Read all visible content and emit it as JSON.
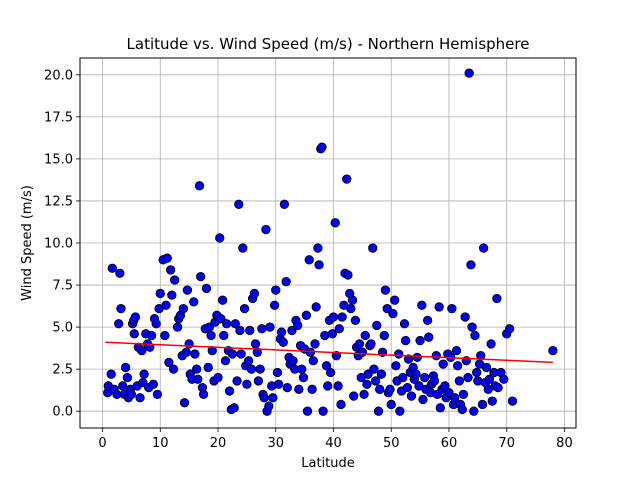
{
  "chart_data": {
    "type": "scatter",
    "title": "Latitude vs. Wind Speed (m/s) - Northern Hemisphere",
    "xlabel": "Latitude",
    "ylabel": "Wind Speed (m/s)",
    "xlim": [
      -3.9,
      82
    ],
    "ylim": [
      -1.0,
      21.0
    ],
    "xticks": [
      0,
      10,
      20,
      30,
      40,
      50,
      60,
      70,
      80
    ],
    "yticks": [
      0.0,
      2.5,
      5.0,
      7.5,
      10.0,
      12.5,
      15.0,
      17.5,
      20.0
    ],
    "xtick_labels": [
      "0",
      "10",
      "20",
      "30",
      "40",
      "50",
      "60",
      "70",
      "80"
    ],
    "ytick_labels": [
      "0.0",
      "2.5",
      "5.0",
      "7.5",
      "10.0",
      "12.5",
      "15.0",
      "17.5",
      "20.0"
    ],
    "grid": true,
    "marker_color": "#0000ff",
    "marker_edge": "#000000",
    "regression": {
      "color": "#ff0000",
      "x": [
        0.5,
        78
      ],
      "y": [
        4.1,
        2.9
      ]
    },
    "points": [
      [
        0.9,
        1.1
      ],
      [
        1.0,
        1.5
      ],
      [
        1.5,
        2.2
      ],
      [
        1.7,
        8.5
      ],
      [
        2.0,
        1.3
      ],
      [
        2.5,
        1.0
      ],
      [
        2.8,
        5.2
      ],
      [
        3.0,
        8.2
      ],
      [
        3.2,
        6.1
      ],
      [
        3.5,
        1.5
      ],
      [
        3.8,
        1.0
      ],
      [
        4.0,
        2.6
      ],
      [
        4.3,
        2.0
      ],
      [
        4.5,
        0.8
      ],
      [
        4.8,
        1.3
      ],
      [
        5.0,
        1.0
      ],
      [
        5.2,
        5.2
      ],
      [
        5.4,
        5.4
      ],
      [
        5.5,
        4.6
      ],
      [
        5.7,
        5.6
      ],
      [
        6.0,
        1.5
      ],
      [
        6.2,
        3.8
      ],
      [
        6.5,
        0.8
      ],
      [
        6.8,
        3.6
      ],
      [
        7.0,
        1.7
      ],
      [
        7.2,
        2.2
      ],
      [
        7.5,
        4.6
      ],
      [
        7.8,
        4.0
      ],
      [
        8.0,
        1.4
      ],
      [
        8.2,
        3.8
      ],
      [
        8.5,
        4.5
      ],
      [
        8.8,
        1.6
      ],
      [
        9.0,
        5.5
      ],
      [
        9.3,
        5.2
      ],
      [
        9.5,
        1.0
      ],
      [
        9.8,
        6.1
      ],
      [
        10.0,
        7.0
      ],
      [
        10.5,
        9.0
      ],
      [
        10.8,
        4.5
      ],
      [
        11.0,
        6.3
      ],
      [
        11.2,
        9.1
      ],
      [
        11.5,
        2.9
      ],
      [
        11.8,
        8.4
      ],
      [
        12.0,
        6.9
      ],
      [
        12.3,
        2.5
      ],
      [
        12.5,
        7.8
      ],
      [
        13.0,
        5.0
      ],
      [
        13.2,
        5.5
      ],
      [
        13.5,
        5.7
      ],
      [
        13.8,
        3.3
      ],
      [
        14.0,
        6.1
      ],
      [
        14.2,
        0.5
      ],
      [
        14.5,
        3.5
      ],
      [
        14.7,
        7.2
      ],
      [
        15.0,
        4.0
      ],
      [
        15.2,
        2.2
      ],
      [
        15.5,
        1.9
      ],
      [
        15.8,
        6.5
      ],
      [
        16.0,
        3.4
      ],
      [
        16.3,
        2.5
      ],
      [
        16.5,
        1.9
      ],
      [
        16.8,
        13.4
      ],
      [
        17.0,
        8.0
      ],
      [
        17.3,
        1.4
      ],
      [
        17.5,
        1.0
      ],
      [
        17.8,
        4.9
      ],
      [
        18.0,
        7.3
      ],
      [
        18.3,
        2.6
      ],
      [
        18.5,
        5.0
      ],
      [
        18.8,
        4.5
      ],
      [
        19.0,
        3.6
      ],
      [
        19.3,
        1.8
      ],
      [
        19.5,
        5.3
      ],
      [
        19.8,
        5.7
      ],
      [
        20.0,
        2.0
      ],
      [
        20.3,
        10.3
      ],
      [
        20.5,
        5.5
      ],
      [
        20.8,
        6.6
      ],
      [
        21.0,
        4.5
      ],
      [
        21.3,
        3.0
      ],
      [
        21.5,
        5.2
      ],
      [
        21.8,
        3.6
      ],
      [
        22.0,
        1.2
      ],
      [
        22.3,
        0.1
      ],
      [
        22.5,
        3.4
      ],
      [
        22.8,
        0.2
      ],
      [
        23.0,
        5.2
      ],
      [
        23.3,
        1.8
      ],
      [
        23.6,
        12.3
      ],
      [
        23.8,
        4.8
      ],
      [
        24.0,
        3.4
      ],
      [
        24.3,
        9.7
      ],
      [
        24.6,
        6.1
      ],
      [
        24.8,
        2.7
      ],
      [
        25.0,
        1.6
      ],
      [
        25.3,
        3.0
      ],
      [
        25.5,
        4.8
      ],
      [
        25.8,
        2.5
      ],
      [
        26.0,
        6.7
      ],
      [
        26.3,
        7.0
      ],
      [
        26.5,
        4.0
      ],
      [
        26.8,
        3.5
      ],
      [
        27.0,
        1.8
      ],
      [
        27.3,
        2.5
      ],
      [
        27.6,
        4.9
      ],
      [
        27.8,
        1.0
      ],
      [
        28.0,
        0.8
      ],
      [
        28.3,
        10.8
      ],
      [
        28.5,
        0.0
      ],
      [
        28.8,
        0.3
      ],
      [
        29.0,
        5.0
      ],
      [
        29.3,
        1.5
      ],
      [
        29.5,
        0.8
      ],
      [
        29.8,
        6.3
      ],
      [
        30.0,
        7.2
      ],
      [
        30.3,
        2.3
      ],
      [
        30.5,
        1.6
      ],
      [
        30.8,
        4.3
      ],
      [
        31.0,
        4.7
      ],
      [
        31.3,
        4.1
      ],
      [
        31.5,
        12.3
      ],
      [
        31.8,
        7.7
      ],
      [
        32.0,
        1.4
      ],
      [
        32.3,
        3.2
      ],
      [
        32.5,
        2.8
      ],
      [
        32.8,
        4.8
      ],
      [
        33.0,
        3.0
      ],
      [
        33.3,
        2.5
      ],
      [
        33.5,
        5.4
      ],
      [
        33.8,
        5.1
      ],
      [
        34.0,
        1.3
      ],
      [
        34.3,
        3.9
      ],
      [
        34.5,
        2.5
      ],
      [
        34.8,
        2.0
      ],
      [
        35.0,
        3.7
      ],
      [
        35.3,
        5.7
      ],
      [
        35.5,
        0.0
      ],
      [
        35.8,
        9.0
      ],
      [
        36.0,
        3.5
      ],
      [
        36.3,
        1.3
      ],
      [
        36.5,
        3.0
      ],
      [
        36.8,
        4.0
      ],
      [
        37.0,
        6.2
      ],
      [
        37.3,
        9.7
      ],
      [
        37.5,
        8.7
      ],
      [
        37.8,
        15.6
      ],
      [
        38.0,
        15.7
      ],
      [
        38.2,
        0.0
      ],
      [
        38.5,
        4.5
      ],
      [
        38.8,
        2.7
      ],
      [
        39.0,
        1.5
      ],
      [
        39.3,
        5.4
      ],
      [
        39.5,
        2.3
      ],
      [
        39.8,
        4.6
      ],
      [
        40.0,
        5.6
      ],
      [
        40.3,
        11.2
      ],
      [
        40.5,
        3.3
      ],
      [
        40.8,
        1.5
      ],
      [
        41.0,
        4.9
      ],
      [
        41.3,
        0.4
      ],
      [
        41.5,
        5.6
      ],
      [
        41.8,
        6.3
      ],
      [
        42.0,
        8.2
      ],
      [
        42.3,
        13.8
      ],
      [
        42.5,
        8.1
      ],
      [
        42.8,
        7.0
      ],
      [
        43.0,
        6.1
      ],
      [
        43.3,
        6.6
      ],
      [
        43.5,
        0.9
      ],
      [
        43.8,
        5.4
      ],
      [
        44.0,
        3.8
      ],
      [
        44.3,
        3.3
      ],
      [
        44.5,
        4.0
      ],
      [
        44.8,
        2.0
      ],
      [
        45.0,
        3.5
      ],
      [
        45.3,
        1.0
      ],
      [
        45.5,
        4.5
      ],
      [
        45.8,
        1.6
      ],
      [
        46.0,
        2.2
      ],
      [
        46.3,
        3.9
      ],
      [
        46.5,
        4.0
      ],
      [
        46.8,
        9.7
      ],
      [
        47.0,
        2.5
      ],
      [
        47.3,
        1.8
      ],
      [
        47.5,
        5.1
      ],
      [
        47.8,
        0.0
      ],
      [
        48.0,
        1.3
      ],
      [
        48.3,
        2.2
      ],
      [
        48.5,
        3.5
      ],
      [
        48.8,
        4.5
      ],
      [
        49.0,
        7.2
      ],
      [
        49.3,
        6.1
      ],
      [
        49.5,
        1.1
      ],
      [
        49.8,
        1.3
      ],
      [
        50.0,
        0.4
      ],
      [
        50.3,
        5.8
      ],
      [
        50.6,
        6.6
      ],
      [
        50.8,
        2.7
      ],
      [
        51.0,
        1.8
      ],
      [
        51.3,
        3.4
      ],
      [
        51.5,
        0.0
      ],
      [
        51.8,
        1.2
      ],
      [
        52.0,
        2.0
      ],
      [
        52.3,
        5.2
      ],
      [
        52.5,
        4.2
      ],
      [
        52.8,
        1.4
      ],
      [
        53.0,
        3.1
      ],
      [
        53.3,
        2.3
      ],
      [
        53.5,
        0.9
      ],
      [
        53.8,
        2.6
      ],
      [
        54.0,
        1.9
      ],
      [
        54.3,
        2.2
      ],
      [
        54.5,
        3.2
      ],
      [
        54.8,
        1.5
      ],
      [
        55.0,
        4.2
      ],
      [
        55.3,
        6.3
      ],
      [
        55.5,
        0.7
      ],
      [
        55.8,
        2.0
      ],
      [
        56.0,
        1.3
      ],
      [
        56.3,
        5.4
      ],
      [
        56.5,
        4.4
      ],
      [
        56.8,
        1.1
      ],
      [
        57.0,
        1.6
      ],
      [
        57.3,
        2.1
      ],
      [
        57.5,
        1.8
      ],
      [
        57.8,
        3.3
      ],
      [
        58.0,
        1.0
      ],
      [
        58.3,
        6.2
      ],
      [
        58.5,
        0.2
      ],
      [
        58.8,
        1.3
      ],
      [
        59.0,
        2.8
      ],
      [
        59.3,
        1.5
      ],
      [
        59.5,
        0.8
      ],
      [
        59.8,
        3.4
      ],
      [
        60.0,
        1.1
      ],
      [
        60.3,
        3.2
      ],
      [
        60.5,
        6.1
      ],
      [
        60.8,
        0.4
      ],
      [
        61.0,
        0.8
      ],
      [
        61.3,
        3.6
      ],
      [
        61.5,
        2.7
      ],
      [
        61.8,
        1.8
      ],
      [
        62.0,
        0.4
      ],
      [
        62.3,
        0.1
      ],
      [
        62.5,
        1.0
      ],
      [
        62.8,
        5.6
      ],
      [
        63.0,
        3.0
      ],
      [
        63.3,
        2.0
      ],
      [
        63.5,
        20.1
      ],
      [
        63.8,
        8.7
      ],
      [
        64.0,
        5.0
      ],
      [
        64.3,
        0.0
      ],
      [
        64.5,
        4.5
      ],
      [
        64.8,
        2.3
      ],
      [
        65.0,
        1.8
      ],
      [
        65.3,
        2.8
      ],
      [
        65.5,
        3.3
      ],
      [
        65.8,
        0.4
      ],
      [
        66.0,
        9.7
      ],
      [
        66.3,
        1.7
      ],
      [
        66.5,
        2.6
      ],
      [
        66.8,
        1.3
      ],
      [
        67.0,
        1.9
      ],
      [
        67.3,
        4.0
      ],
      [
        67.5,
        0.6
      ],
      [
        67.8,
        2.3
      ],
      [
        68.0,
        1.5
      ],
      [
        68.3,
        6.7
      ],
      [
        68.5,
        1.4
      ],
      [
        69.0,
        2.3
      ],
      [
        69.5,
        1.9
      ],
      [
        70.0,
        4.6
      ],
      [
        70.5,
        4.9
      ],
      [
        71.0,
        0.6
      ],
      [
        78.0,
        3.6
      ]
    ]
  }
}
